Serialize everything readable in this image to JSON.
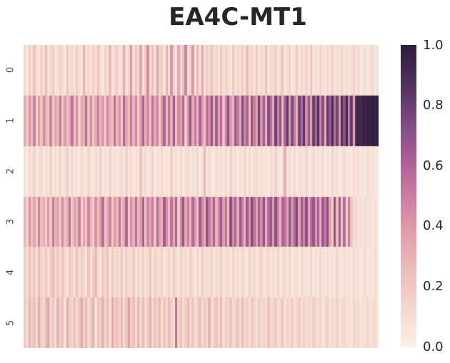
{
  "title": "EA4C-MT1",
  "colors": {
    "background": "#ffffff",
    "title_text": "#262626",
    "tick_text": "#444444",
    "cmap_low": "#fbf0e8",
    "cmap_high": "#2c1e3e"
  },
  "chart_data": {
    "type": "heatmap",
    "title": "EA4C-MT1",
    "xlabel": "",
    "ylabel": "",
    "rows": [
      "0",
      "1",
      "2",
      "3",
      "4",
      "5"
    ],
    "n_cols": 150,
    "grid": false,
    "colorbar": {
      "min": 0.0,
      "max": 1.0,
      "position": "right",
      "ticks": [
        "1.0",
        "0.8",
        "0.6",
        "0.4",
        "0.2",
        "0.0"
      ]
    },
    "colormap_stops": [
      [
        0.0,
        "#fbf0e8"
      ],
      [
        0.125,
        "#f4d8cd"
      ],
      [
        0.25,
        "#ecbfba"
      ],
      [
        0.375,
        "#e0a0ac"
      ],
      [
        0.5,
        "#cb7da1"
      ],
      [
        0.625,
        "#a95e95"
      ],
      [
        0.75,
        "#7b4a7f"
      ],
      [
        0.875,
        "#4e3059"
      ],
      [
        1.0,
        "#2c1e3e"
      ]
    ],
    "values": [
      [
        0.12,
        0.05,
        0.18,
        0.08,
        0.22,
        0.1,
        0.06,
        0.15,
        0.09,
        0.28,
        0.07,
        0.12,
        0.2,
        0.05,
        0.09,
        0.16,
        0.11,
        0.06,
        0.24,
        0.08,
        0.14,
        0.07,
        0.19,
        0.1,
        0.05,
        0.31,
        0.09,
        0.13,
        0.06,
        0.17,
        0.08,
        0.23,
        0.11,
        0.05,
        0.15,
        0.09,
        0.27,
        0.07,
        0.12,
        0.18,
        0.06,
        0.1,
        0.33,
        0.08,
        0.14,
        0.41,
        0.09,
        0.22,
        0.12,
        0.35,
        0.07,
        0.18,
        0.45,
        0.1,
        0.26,
        0.08,
        0.38,
        0.13,
        0.21,
        0.06,
        0.3,
        0.09,
        0.43,
        0.15,
        0.07,
        0.36,
        0.11,
        0.24,
        0.48,
        0.08,
        0.17,
        0.4,
        0.06,
        0.28,
        0.1,
        0.33,
        0.07,
        0.19,
        0.12,
        0.25,
        0.09,
        0.14,
        0.06,
        0.21,
        0.08,
        0.16,
        0.11,
        0.05,
        0.23,
        0.07,
        0.13,
        0.09,
        0.18,
        0.06,
        0.26,
        0.1,
        0.15,
        0.07,
        0.2,
        0.05,
        0.11,
        0.08,
        0.24,
        0.06,
        0.14,
        0.09,
        0.17,
        0.05,
        0.12,
        0.22,
        0.07,
        0.1,
        0.16,
        0.05,
        0.09,
        0.19,
        0.06,
        0.13,
        0.08,
        0.15,
        0.05,
        0.21,
        0.07,
        0.11,
        0.06,
        0.16,
        0.09,
        0.05,
        0.13,
        0.07,
        0.18,
        0.05,
        0.1,
        0.08,
        0.14,
        0.06,
        0.11,
        0.05,
        0.09,
        0.16,
        0.06,
        0.12,
        0.05,
        0.08,
        0.1,
        0.05,
        0.07,
        0.13,
        0.06,
        0.09
      ],
      [
        0.35,
        0.18,
        0.42,
        0.25,
        0.5,
        0.15,
        0.38,
        0.22,
        0.45,
        0.3,
        0.2,
        0.48,
        0.16,
        0.36,
        0.28,
        0.52,
        0.19,
        0.4,
        0.24,
        0.33,
        0.55,
        0.21,
        0.44,
        0.17,
        0.37,
        0.29,
        0.58,
        0.23,
        0.46,
        0.18,
        0.34,
        0.51,
        0.26,
        0.41,
        0.15,
        0.48,
        0.31,
        0.22,
        0.56,
        0.27,
        0.43,
        0.19,
        0.6,
        0.35,
        0.24,
        0.52,
        0.29,
        0.47,
        0.16,
        0.39,
        0.63,
        0.28,
        0.45,
        0.2,
        0.57,
        0.33,
        0.49,
        0.17,
        0.41,
        0.61,
        0.25,
        0.54,
        0.3,
        0.66,
        0.22,
        0.47,
        0.36,
        0.59,
        0.18,
        0.43,
        0.68,
        0.31,
        0.52,
        0.26,
        0.62,
        0.38,
        0.21,
        0.56,
        0.44,
        0.7,
        0.29,
        0.64,
        0.35,
        0.58,
        0.23,
        0.49,
        0.72,
        0.4,
        0.27,
        0.66,
        0.53,
        0.32,
        0.75,
        0.45,
        0.61,
        0.24,
        0.69,
        0.5,
        0.37,
        0.78,
        0.42,
        0.65,
        0.28,
        0.73,
        0.55,
        0.33,
        0.8,
        0.47,
        0.7,
        0.25,
        0.62,
        0.83,
        0.39,
        0.74,
        0.51,
        0.3,
        0.77,
        0.58,
        0.85,
        0.44,
        0.68,
        0.35,
        0.8,
        0.6,
        0.88,
        0.48,
        0.73,
        0.29,
        0.84,
        0.65,
        0.9,
        0.55,
        0.78,
        0.4,
        0.87,
        0.7,
        0.93,
        0.52,
        0.82,
        0.34,
        0.89,
        0.95,
        0.91,
        0.97,
        0.94,
        0.98,
        0.96,
        1.0,
        0.97,
        0.99
      ],
      [
        0.08,
        0.04,
        0.12,
        0.06,
        0.15,
        0.05,
        0.09,
        0.13,
        0.04,
        0.1,
        0.06,
        0.16,
        0.05,
        0.11,
        0.07,
        0.14,
        0.04,
        0.09,
        0.18,
        0.05,
        0.12,
        0.06,
        0.1,
        0.04,
        0.15,
        0.07,
        0.05,
        0.13,
        0.08,
        0.04,
        0.11,
        0.05,
        0.17,
        0.06,
        0.09,
        0.04,
        0.14,
        0.07,
        0.1,
        0.05,
        0.08,
        0.13,
        0.04,
        0.16,
        0.06,
        0.11,
        0.05,
        0.09,
        0.04,
        0.22,
        0.07,
        0.12,
        0.05,
        0.08,
        0.15,
        0.04,
        0.1,
        0.06,
        0.13,
        0.05,
        0.09,
        0.04,
        0.17,
        0.07,
        0.11,
        0.05,
        0.14,
        0.04,
        0.08,
        0.12,
        0.05,
        0.1,
        0.06,
        0.15,
        0.04,
        0.09,
        0.28,
        0.05,
        0.12,
        0.07,
        0.04,
        0.11,
        0.06,
        0.09,
        0.05,
        0.13,
        0.04,
        0.16,
        0.07,
        0.1,
        0.05,
        0.08,
        0.04,
        0.14,
        0.06,
        0.11,
        0.05,
        0.09,
        0.13,
        0.04,
        0.1,
        0.06,
        0.08,
        0.04,
        0.12,
        0.05,
        0.15,
        0.07,
        0.04,
        0.09,
        0.32,
        0.05,
        0.11,
        0.06,
        0.13,
        0.04,
        0.08,
        0.1,
        0.05,
        0.14,
        0.04,
        0.07,
        0.12,
        0.05,
        0.09,
        0.06,
        0.11,
        0.04,
        0.08,
        0.05,
        0.13,
        0.06,
        0.1,
        0.04,
        0.07,
        0.12,
        0.05,
        0.08,
        0.04,
        0.11,
        0.06,
        0.09,
        0.05,
        0.07,
        0.04,
        0.1,
        0.05,
        0.08,
        0.06,
        0.04
      ],
      [
        0.3,
        0.15,
        0.42,
        0.22,
        0.35,
        0.18,
        0.48,
        0.25,
        0.33,
        0.16,
        0.4,
        0.2,
        0.52,
        0.28,
        0.36,
        0.17,
        0.45,
        0.23,
        0.31,
        0.55,
        0.19,
        0.38,
        0.26,
        0.5,
        0.15,
        0.34,
        0.21,
        0.47,
        0.29,
        0.16,
        0.43,
        0.24,
        0.37,
        0.58,
        0.2,
        0.32,
        0.49,
        0.18,
        0.41,
        0.27,
        0.53,
        0.22,
        0.35,
        0.6,
        0.17,
        0.44,
        0.3,
        0.56,
        0.25,
        0.38,
        0.63,
        0.19,
        0.47,
        0.33,
        0.52,
        0.21,
        0.58,
        0.36,
        0.28,
        0.65,
        0.42,
        0.24,
        0.55,
        0.31,
        0.61,
        0.18,
        0.46,
        0.68,
        0.34,
        0.5,
        0.26,
        0.59,
        0.39,
        0.22,
        0.64,
        0.45,
        0.3,
        0.7,
        0.52,
        0.35,
        0.62,
        0.27,
        0.48,
        0.66,
        0.38,
        0.55,
        0.23,
        0.72,
        0.43,
        0.6,
        0.32,
        0.68,
        0.5,
        0.28,
        0.65,
        0.4,
        0.74,
        0.56,
        0.35,
        0.62,
        0.45,
        0.7,
        0.3,
        0.58,
        0.67,
        0.38,
        0.73,
        0.48,
        0.26,
        0.63,
        0.55,
        0.34,
        0.69,
        0.42,
        0.6,
        0.75,
        0.37,
        0.65,
        0.46,
        0.71,
        0.33,
        0.57,
        0.68,
        0.4,
        0.62,
        0.29,
        0.66,
        0.49,
        0.73,
        0.36,
        0.15,
        0.7,
        0.25,
        0.64,
        0.19,
        0.58,
        0.12,
        0.52,
        0.22,
        0.08,
        0.14,
        0.06,
        0.1,
        0.05,
        0.12,
        0.07,
        0.09,
        0.04,
        0.08,
        0.05
      ],
      [
        0.18,
        0.09,
        0.24,
        0.12,
        0.2,
        0.08,
        0.26,
        0.14,
        0.1,
        0.22,
        0.07,
        0.17,
        0.28,
        0.11,
        0.19,
        0.09,
        0.23,
        0.13,
        0.06,
        0.21,
        0.15,
        0.08,
        0.25,
        0.1,
        0.18,
        0.12,
        0.07,
        0.22,
        0.09,
        0.16,
        0.27,
        0.11,
        0.08,
        0.2,
        0.13,
        0.24,
        0.07,
        0.17,
        0.1,
        0.14,
        0.09,
        0.21,
        0.06,
        0.16,
        0.11,
        0.08,
        0.19,
        0.05,
        0.13,
        0.09,
        0.17,
        0.07,
        0.12,
        0.22,
        0.06,
        0.15,
        0.1,
        0.08,
        0.18,
        0.05,
        0.11,
        0.14,
        0.07,
        0.2,
        0.09,
        0.05,
        0.16,
        0.08,
        0.12,
        0.06,
        0.19,
        0.1,
        0.05,
        0.14,
        0.08,
        0.17,
        0.06,
        0.11,
        0.09,
        0.15,
        0.05,
        0.12,
        0.07,
        0.18,
        0.06,
        0.1,
        0.13,
        0.05,
        0.16,
        0.08,
        0.11,
        0.06,
        0.14,
        0.09,
        0.05,
        0.17,
        0.07,
        0.12,
        0.05,
        0.1,
        0.15,
        0.06,
        0.09,
        0.13,
        0.05,
        0.11,
        0.07,
        0.16,
        0.05,
        0.09,
        0.12,
        0.06,
        0.14,
        0.05,
        0.08,
        0.11,
        0.05,
        0.13,
        0.07,
        0.09,
        0.05,
        0.15,
        0.06,
        0.1,
        0.05,
        0.12,
        0.08,
        0.05,
        0.11,
        0.06,
        0.09,
        0.05,
        0.13,
        0.07,
        0.05,
        0.1,
        0.06,
        0.08,
        0.05,
        0.12,
        0.06,
        0.09,
        0.05,
        0.07,
        0.11,
        0.05,
        0.08,
        0.06,
        0.1,
        0.05
      ],
      [
        0.22,
        0.11,
        0.3,
        0.15,
        0.25,
        0.09,
        0.33,
        0.18,
        0.12,
        0.27,
        0.35,
        0.14,
        0.21,
        0.1,
        0.29,
        0.16,
        0.24,
        0.08,
        0.31,
        0.19,
        0.13,
        0.26,
        0.1,
        0.22,
        0.36,
        0.15,
        0.28,
        0.11,
        0.2,
        0.32,
        0.09,
        0.24,
        0.17,
        0.3,
        0.12,
        0.26,
        0.1,
        0.34,
        0.18,
        0.23,
        0.14,
        0.28,
        0.11,
        0.21,
        0.38,
        0.16,
        0.25,
        0.09,
        0.3,
        0.13,
        0.27,
        0.1,
        0.19,
        0.32,
        0.12,
        0.23,
        0.15,
        0.29,
        0.08,
        0.21,
        0.11,
        0.26,
        0.17,
        0.09,
        0.55,
        0.13,
        0.24,
        0.1,
        0.18,
        0.28,
        0.12,
        0.22,
        0.08,
        0.16,
        0.25,
        0.1,
        0.2,
        0.13,
        0.3,
        0.09,
        0.17,
        0.23,
        0.11,
        0.27,
        0.08,
        0.19,
        0.14,
        0.24,
        0.09,
        0.16,
        0.21,
        0.1,
        0.26,
        0.12,
        0.18,
        0.08,
        0.22,
        0.15,
        0.09,
        0.2,
        0.11,
        0.16,
        0.08,
        0.24,
        0.1,
        0.14,
        0.19,
        0.08,
        0.12,
        0.22,
        0.09,
        0.15,
        0.11,
        0.18,
        0.08,
        0.13,
        0.2,
        0.09,
        0.16,
        0.1,
        0.14,
        0.08,
        0.18,
        0.11,
        0.09,
        0.15,
        0.07,
        0.12,
        0.17,
        0.08,
        0.13,
        0.09,
        0.16,
        0.07,
        0.11,
        0.14,
        0.08,
        0.1,
        0.06,
        0.15,
        0.09,
        0.12,
        0.07,
        0.1,
        0.08,
        0.13,
        0.06,
        0.09,
        0.11,
        0.07
      ]
    ]
  }
}
